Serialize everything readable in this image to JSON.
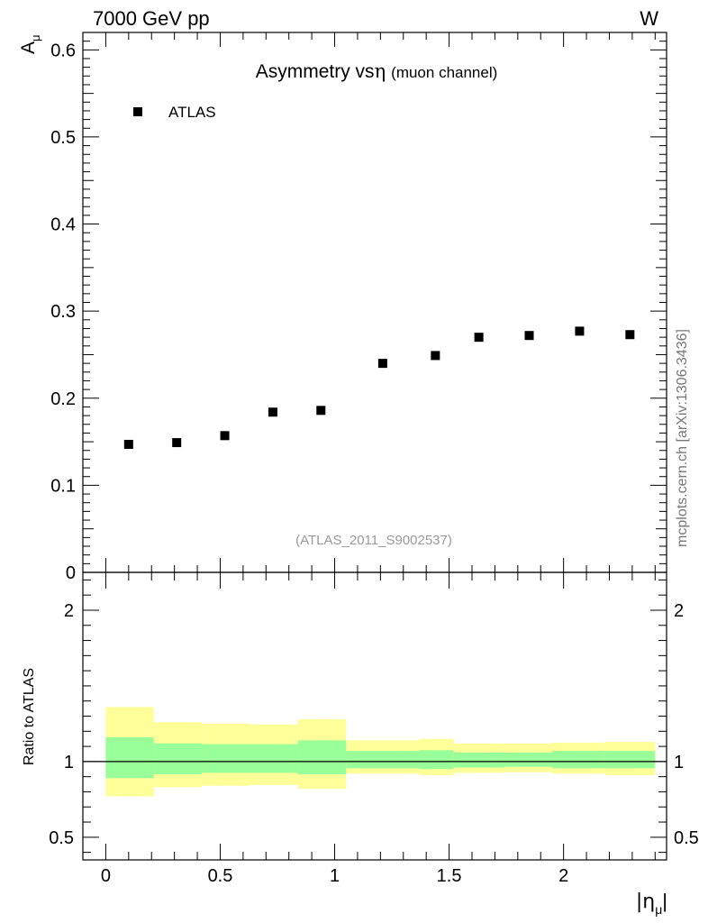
{
  "header": {
    "left": "7000 GeV pp",
    "right": "W"
  },
  "side_label": "mcplots.cern.ch [arXiv:1306.3436]",
  "chart_data": [
    {
      "type": "scatter",
      "title": "Asymmetry vs",
      "title_symbol": "η",
      "subtitle": "(muon channel)",
      "watermark": "(ATLAS_2011_S9002537)",
      "ylabel": "A",
      "ylabel_sub": "μ",
      "xlim": [
        -0.1,
        2.45
      ],
      "ylim": [
        0,
        0.62
      ],
      "yticks": [
        "0",
        "0.1",
        "0.2",
        "0.3",
        "0.4",
        "0.5",
        "0.6"
      ],
      "ytick_values": [
        0,
        0.1,
        0.2,
        0.3,
        0.4,
        0.5,
        0.6
      ],
      "legend": {
        "label": "ATLAS",
        "placement": "top-left"
      },
      "series": [
        {
          "name": "ATLAS",
          "x": [
            0.1,
            0.31,
            0.52,
            0.73,
            0.94,
            1.21,
            1.44,
            1.63,
            1.85,
            2.07,
            2.29
          ],
          "y": [
            0.147,
            0.149,
            0.157,
            0.184,
            0.186,
            0.24,
            0.249,
            0.27,
            0.272,
            0.277,
            0.273
          ]
        }
      ]
    },
    {
      "type": "area",
      "ylabel": "Ratio to ATLAS",
      "xlabel": "|η",
      "xlabel_sub": "μ",
      "xlabel_end": "|",
      "xlim": [
        -0.1,
        2.45
      ],
      "ylim": [
        0.35,
        2.25
      ],
      "xticks": [
        "0",
        "0.5",
        "1",
        "1.5",
        "2"
      ],
      "xtick_values": [
        0,
        0.5,
        1,
        1.5,
        2
      ],
      "yticks": [
        "0.5",
        "1",
        "2"
      ],
      "ytick_values": [
        0.5,
        1,
        2
      ],
      "reference_line": 1,
      "bins": [
        0,
        0.21,
        0.42,
        0.63,
        0.84,
        1.05,
        1.37,
        1.52,
        1.74,
        1.95,
        2.18,
        2.4
      ],
      "yellow_band": {
        "low": [
          0.77,
          0.83,
          0.84,
          0.845,
          0.82,
          0.92,
          0.91,
          0.925,
          0.93,
          0.92,
          0.91
        ],
        "high": [
          1.36,
          1.26,
          1.25,
          1.245,
          1.28,
          1.14,
          1.15,
          1.12,
          1.12,
          1.125,
          1.13
        ]
      },
      "green_band": {
        "low": [
          0.89,
          0.915,
          0.925,
          0.925,
          0.915,
          0.955,
          0.95,
          0.96,
          0.965,
          0.955,
          0.955
        ],
        "high": [
          1.16,
          1.12,
          1.115,
          1.115,
          1.14,
          1.07,
          1.075,
          1.06,
          1.06,
          1.07,
          1.07
        ]
      },
      "colors": {
        "yellow": "#ffff99",
        "green": "#99ff99",
        "line": "#000000"
      }
    }
  ]
}
